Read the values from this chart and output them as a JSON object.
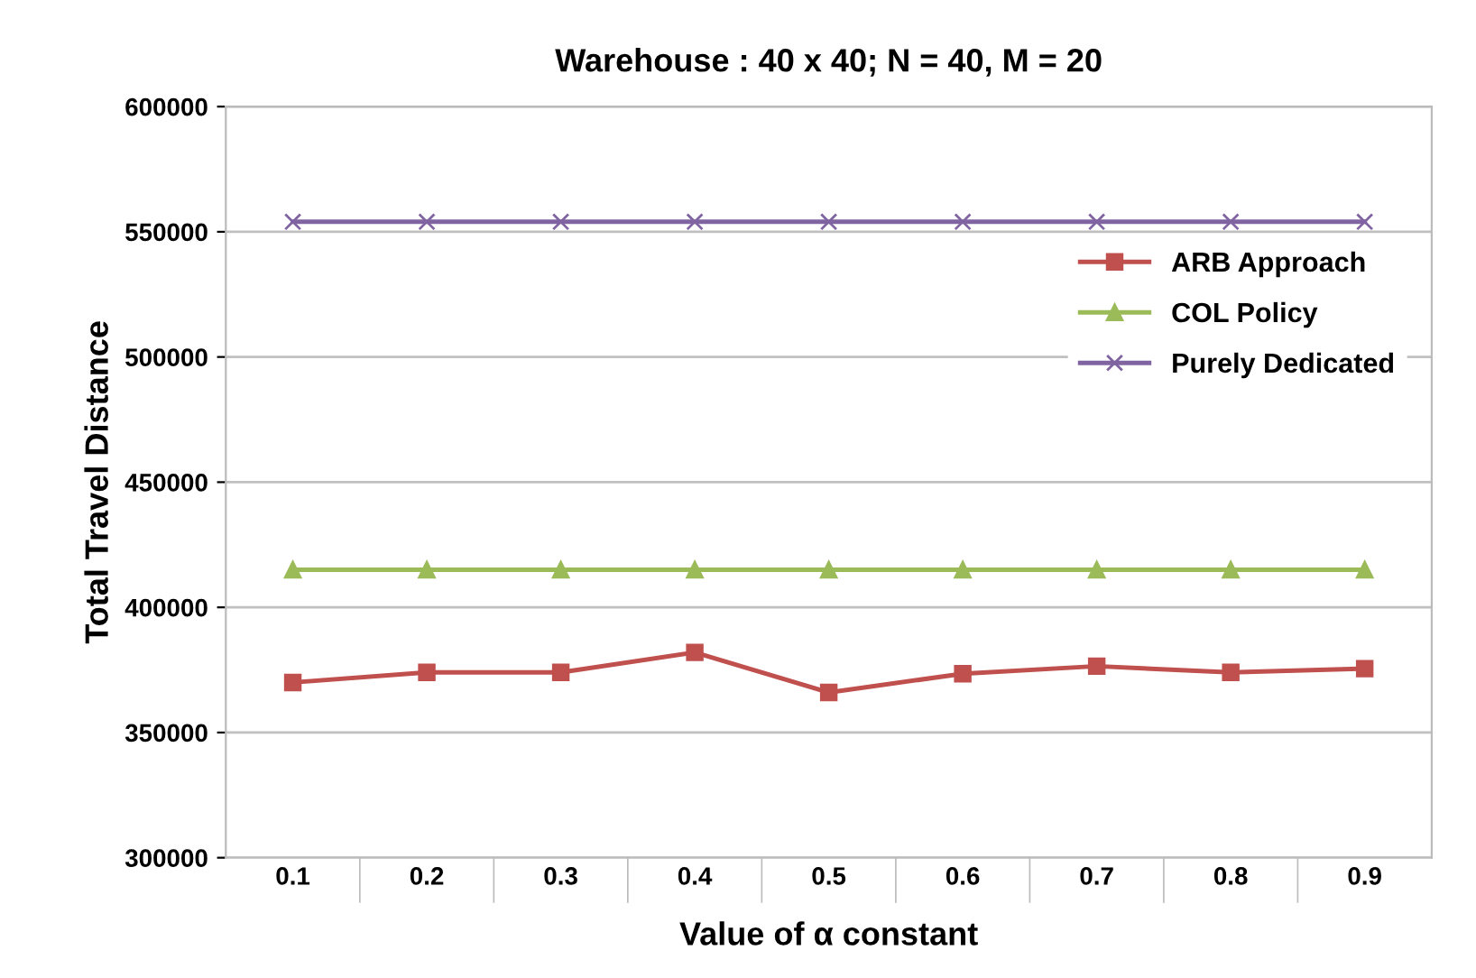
{
  "chart_data": {
    "type": "line",
    "title": "Warehouse : 40 x 40; N = 40, M = 20",
    "xlabel": "Value of α constant",
    "ylabel": "Total Travel Distance",
    "categories": [
      "0.1",
      "0.2",
      "0.3",
      "0.4",
      "0.5",
      "0.6",
      "0.7",
      "0.8",
      "0.9"
    ],
    "series": [
      {
        "name": "ARB Approach",
        "color": "#c0504d",
        "marker": "square",
        "values": [
          370000,
          374000,
          374000,
          382000,
          366000,
          373500,
          376500,
          374000,
          375500
        ]
      },
      {
        "name": "COL Policy",
        "color": "#9bbb59",
        "marker": "triangle",
        "values": [
          415000,
          415000,
          415000,
          415000,
          415000,
          415000,
          415000,
          415000,
          415000
        ]
      },
      {
        "name": "Purely Dedicated",
        "color": "#8064a2",
        "marker": "cross",
        "values": [
          554000,
          554000,
          554000,
          554000,
          554000,
          554000,
          554000,
          554000,
          554000
        ]
      }
    ],
    "ylim": [
      300000,
      600000
    ],
    "yticks": [
      300000,
      350000,
      400000,
      450000,
      500000,
      550000,
      600000
    ],
    "grid": "y",
    "legend": "top right"
  }
}
